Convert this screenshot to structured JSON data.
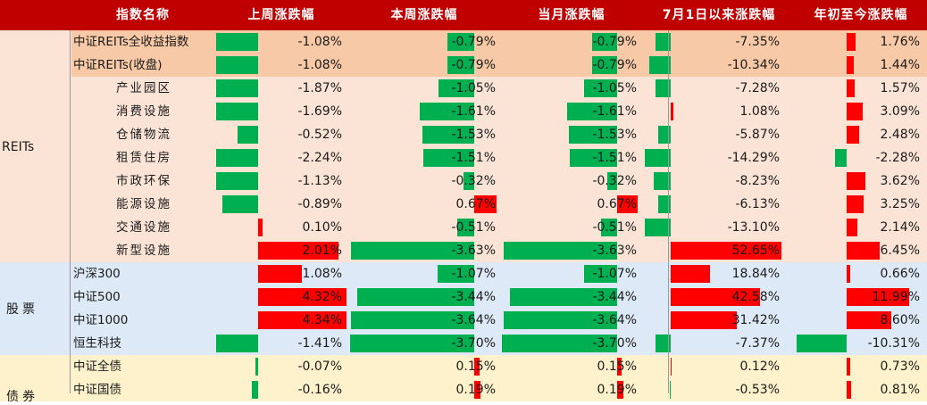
{
  "header": {
    "name": "指数名称",
    "weekly_prev": "上周涨跌幅",
    "weekly": "本周涨跌幅",
    "monthly": "当月涨跌幅",
    "since_jul1": "7月1日以来涨跌幅",
    "ytd": "年初至今涨跌幅"
  },
  "colors": {
    "header_bg": "#c00000",
    "reits_top_bg": "#f7c9a6",
    "reits_bg": "#fbe4d6",
    "stock_bg": "#dde9f6",
    "bond_bg": "#fef2cc",
    "positive_bar": "#ff0000",
    "negative_bar": "#00b050"
  },
  "groups": [
    {
      "label": "REITs",
      "key": "reits"
    },
    {
      "label": "股票",
      "key": "stock"
    },
    {
      "label": "债券",
      "key": "bond"
    }
  ],
  "rows": [
    {
      "group": "reits",
      "top": true,
      "indent": false,
      "name": "中证REITs全收益指数",
      "values": [
        "-1.08%",
        "-0.79%",
        "-0.79%",
        "-7.35%",
        "1.76%"
      ],
      "numbers": [
        -1.08,
        -0.79,
        -0.79,
        -7.35,
        1.76
      ]
    },
    {
      "group": "reits",
      "top": true,
      "indent": false,
      "name": "中证REITs(收盘)",
      "values": [
        "-1.08%",
        "-0.79%",
        "-0.79%",
        "-10.34%",
        "1.44%"
      ],
      "numbers": [
        -1.08,
        -0.79,
        -0.79,
        -10.34,
        1.44
      ]
    },
    {
      "group": "reits",
      "indent": true,
      "name": "产业园区",
      "values": [
        "-1.87%",
        "-1.05%",
        "-1.05%",
        "-7.28%",
        "1.57%"
      ],
      "numbers": [
        -1.87,
        -1.05,
        -1.05,
        -7.28,
        1.57
      ]
    },
    {
      "group": "reits",
      "indent": true,
      "name": "消费设施",
      "values": [
        "-1.69%",
        "-1.61%",
        "-1.61%",
        "1.08%",
        "3.09%"
      ],
      "numbers": [
        -1.69,
        -1.61,
        -1.61,
        1.08,
        3.09
      ]
    },
    {
      "group": "reits",
      "indent": true,
      "name": "仓储物流",
      "values": [
        "-0.52%",
        "-1.53%",
        "-1.53%",
        "-5.87%",
        "2.48%"
      ],
      "numbers": [
        -0.52,
        -1.53,
        -1.53,
        -5.87,
        2.48
      ]
    },
    {
      "group": "reits",
      "indent": true,
      "name": "租赁住房",
      "values": [
        "-2.24%",
        "-1.51%",
        "-1.51%",
        "-14.29%",
        "-2.28%"
      ],
      "numbers": [
        -2.24,
        -1.51,
        -1.51,
        -14.29,
        -2.28
      ]
    },
    {
      "group": "reits",
      "indent": true,
      "name": "市政环保",
      "values": [
        "-1.13%",
        "-0.32%",
        "-0.32%",
        "-8.23%",
        "3.62%"
      ],
      "numbers": [
        -1.13,
        -0.32,
        -0.32,
        -8.23,
        3.62
      ]
    },
    {
      "group": "reits",
      "indent": true,
      "name": "能源设施",
      "values": [
        "-0.89%",
        "0.67%",
        "0.67%",
        "-6.13%",
        "3.25%"
      ],
      "numbers": [
        -0.89,
        0.67,
        0.67,
        -6.13,
        3.25
      ]
    },
    {
      "group": "reits",
      "indent": true,
      "name": "交通设施",
      "values": [
        "0.10%",
        "-0.51%",
        "-0.51%",
        "-13.10%",
        "2.14%"
      ],
      "numbers": [
        0.1,
        -0.51,
        -0.51,
        -13.1,
        2.14
      ]
    },
    {
      "group": "reits",
      "indent": true,
      "name": "新型设施",
      "values": [
        "2.01%",
        "-3.63%",
        "-3.63%",
        "52.65%",
        "6.45%"
      ],
      "numbers": [
        2.01,
        -3.63,
        -3.63,
        52.65,
        6.45
      ]
    },
    {
      "group": "stock",
      "indent": false,
      "name": "沪深300",
      "values": [
        "1.08%",
        "-1.07%",
        "-1.07%",
        "18.84%",
        "0.66%"
      ],
      "numbers": [
        1.08,
        -1.07,
        -1.07,
        18.84,
        0.66
      ]
    },
    {
      "group": "stock",
      "indent": false,
      "name": "中证500",
      "values": [
        "4.32%",
        "-3.44%",
        "-3.44%",
        "42.58%",
        "11.99%"
      ],
      "numbers": [
        4.32,
        -3.44,
        -3.44,
        42.58,
        11.99
      ]
    },
    {
      "group": "stock",
      "indent": false,
      "name": "中证1000",
      "values": [
        "4.34%",
        "-3.64%",
        "-3.64%",
        "31.42%",
        "8.60%"
      ],
      "numbers": [
        4.34,
        -3.64,
        -3.64,
        31.42,
        8.6
      ]
    },
    {
      "group": "stock",
      "indent": false,
      "name": "恒生科技",
      "values": [
        "-1.41%",
        "-3.70%",
        "-3.70%",
        "-7.37%",
        "-10.31%"
      ],
      "numbers": [
        -1.41,
        -3.7,
        -3.7,
        -7.37,
        -10.31
      ]
    },
    {
      "group": "bond",
      "indent": false,
      "name": "中证全债",
      "values": [
        "-0.07%",
        "0.15%",
        "0.15%",
        "0.12%",
        "0.73%"
      ],
      "numbers": [
        -0.07,
        0.15,
        0.15,
        0.12,
        0.73
      ]
    },
    {
      "group": "bond",
      "indent": false,
      "name": "中证国债",
      "values": [
        "-0.16%",
        "0.19%",
        "0.19%",
        "-0.53%",
        "0.81%"
      ],
      "numbers": [
        -0.16,
        0.19,
        0.19,
        -0.53,
        0.81
      ]
    }
  ]
}
